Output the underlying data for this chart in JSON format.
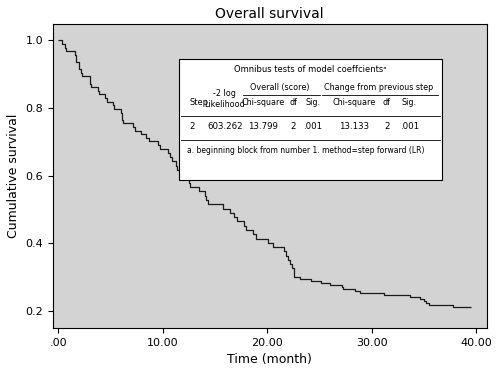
{
  "title": "Overall survival",
  "xlabel": "Time (month)",
  "ylabel": "Cumulative survival",
  "xlim": [
    -0.5,
    41
  ],
  "ylim": [
    0.15,
    1.05
  ],
  "xticks": [
    0,
    10,
    20,
    30,
    40
  ],
  "xticklabels": [
    ".00",
    "10.00",
    "20.00",
    "30.00",
    "40.00"
  ],
  "yticks": [
    0.2,
    0.4,
    0.6,
    0.8,
    1.0
  ],
  "yticklabels": [
    "0.2",
    "0.4",
    "0.6",
    "0.8",
    "1.0"
  ],
  "bg_color": "#d3d3d3",
  "line_color": "#1a1a1a",
  "table_title": "Omnibus tests of model coeffcientsᵃ",
  "table_note": "a. beginning block from number 1. method=step forward (LR)",
  "table_row": [
    "2",
    "603.262",
    "13.799",
    "2",
    ".001",
    "13.133",
    "2",
    ".001"
  ]
}
